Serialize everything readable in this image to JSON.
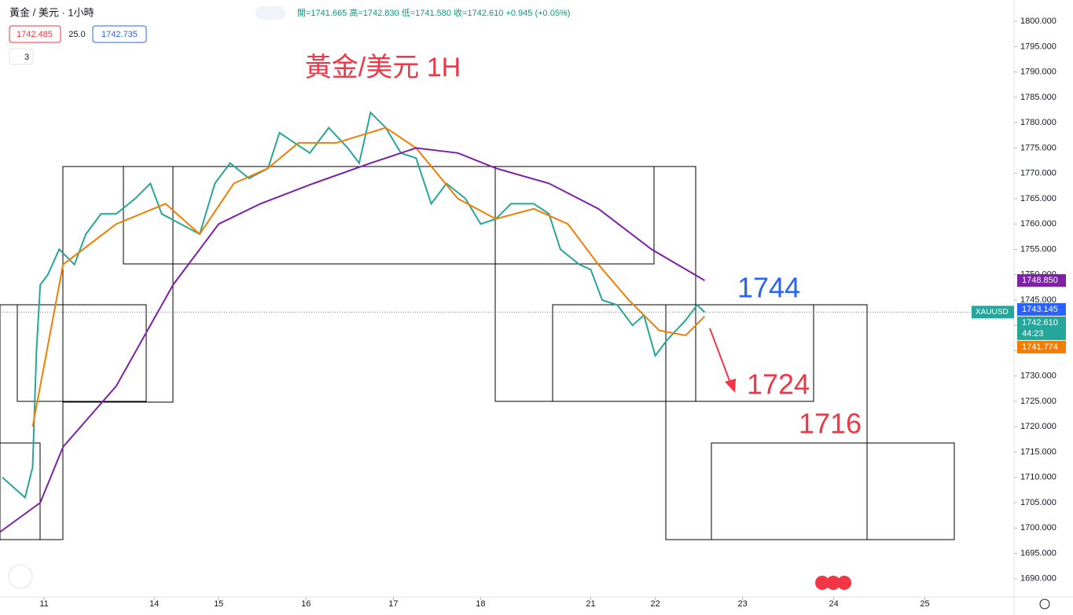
{
  "header": {
    "symbol": "黃金 / 美元 · 1小時",
    "ohlc": "開=1741.665 高=1742.830 低=1741.580 收=1742.610 +0.945 (+0.05%)",
    "bid": "1742.485",
    "spread": "25.0",
    "ask": "1742.735",
    "indicators": "3"
  },
  "chart_data": {
    "type": "line",
    "title": "黃金/美元 1H",
    "annotations": [
      {
        "text": "1744",
        "color": "#2962ff"
      },
      {
        "text": "1724",
        "color": "#f23645"
      },
      {
        "text": "1716",
        "color": "#f23645"
      }
    ],
    "series": [
      {
        "name": "XAUUSD",
        "color": "#26a69a",
        "x": [
          -11,
          -5,
          -3,
          -2,
          -1,
          1,
          4,
          8,
          11,
          15,
          19,
          24,
          28,
          31,
          36,
          41,
          45,
          49,
          54,
          59,
          62,
          66,
          70,
          75,
          80,
          83,
          86,
          90,
          94,
          98,
          102,
          106,
          111,
          115,
          119,
          123,
          129,
          133,
          136,
          141,
          144,
          147,
          151,
          155,
          158,
          161,
          164,
          169,
          172,
          174
        ],
        "values": [
          1710,
          1706,
          1712,
          1735,
          1748,
          1750,
          1755,
          1752,
          1758,
          1762,
          1762,
          1765,
          1768,
          1762,
          1760,
          1758,
          1768,
          1772,
          1769,
          1771,
          1778,
          1776,
          1774,
          1779,
          1775,
          1772,
          1782,
          1779,
          1774,
          1773,
          1764,
          1768,
          1765,
          1760,
          1761,
          1764,
          1764,
          1762,
          1755,
          1752,
          1751,
          1745,
          1744,
          1740,
          1742,
          1734,
          1737,
          1741,
          1744,
          1742.61
        ]
      },
      {
        "name": "EMA",
        "color": "#f57c00",
        "x": [
          -3,
          5,
          19,
          32,
          41,
          50,
          59,
          67,
          77,
          90,
          98,
          109,
          119,
          129,
          138,
          146,
          154,
          162,
          169,
          174
        ],
        "values": [
          1720,
          1752,
          1760,
          1764,
          1758,
          1768,
          1771,
          1776,
          1776,
          1779,
          1775,
          1765,
          1761,
          1763,
          1760,
          1752,
          1745,
          1739,
          1738,
          1741.774
        ]
      },
      {
        "name": "SMA",
        "color": "#7e1fa8",
        "x": [
          -12,
          -1,
          5,
          19,
          34,
          46,
          57,
          71,
          86,
          98,
          109,
          119,
          133,
          146,
          160,
          174
        ],
        "values": [
          1699,
          1705,
          1716,
          1728,
          1748,
          1760,
          1764,
          1768,
          1772,
          1775,
          1774,
          1771,
          1768,
          1763,
          1755,
          1748.85
        ]
      }
    ],
    "xlim": [
      -11.6,
      255.5
    ],
    "xticks": [
      {
        "value": 0,
        "label": "11"
      },
      {
        "value": 29,
        "label": "14"
      },
      {
        "value": 46,
        "label": "15"
      },
      {
        "value": 69,
        "label": "16"
      },
      {
        "value": 92,
        "label": "17"
      },
      {
        "value": 115,
        "label": "18"
      },
      {
        "value": 144,
        "label": "21"
      },
      {
        "value": 161,
        "label": "22"
      },
      {
        "value": 184,
        "label": "23"
      },
      {
        "value": 208,
        "label": "24"
      },
      {
        "value": 232,
        "label": "25"
      }
    ],
    "ylim": [
      1686.4,
      1804.2
    ],
    "yticks": [
      {
        "value": 1690,
        "label": "1690.000"
      },
      {
        "value": 1695,
        "label": "1695.000"
      },
      {
        "value": 1700,
        "label": "1700.000"
      },
      {
        "value": 1705,
        "label": "1705.000"
      },
      {
        "value": 1710,
        "label": "1710.000"
      },
      {
        "value": 1715,
        "label": "1715.000"
      },
      {
        "value": 1720,
        "label": "1720.000"
      },
      {
        "value": 1725,
        "label": "1725.000"
      },
      {
        "value": 1730,
        "label": "1730.000"
      },
      {
        "value": 1735,
        "label": "1735.000"
      },
      {
        "value": 1740,
        "label": "1740.000"
      },
      {
        "value": 1745,
        "label": "1745.000"
      },
      {
        "value": 1750,
        "label": "1750.000"
      },
      {
        "value": 1755,
        "label": "1755.000"
      },
      {
        "value": 1760,
        "label": "1760.000"
      },
      {
        "value": 1765,
        "label": "1765.000"
      },
      {
        "value": 1770,
        "label": "1770.000"
      },
      {
        "value": 1775,
        "label": "1775.000"
      },
      {
        "value": 1780,
        "label": "1780.000"
      },
      {
        "value": 1785,
        "label": "1785.000"
      },
      {
        "value": 1790,
        "label": "1790.000"
      },
      {
        "value": 1795,
        "label": "1795.000"
      },
      {
        "value": 1800,
        "label": "1800.000"
      }
    ],
    "price_labels": [
      {
        "value": 1748.85,
        "label": "1748.850",
        "color": "#7e1fa8"
      },
      {
        "value": 1743.145,
        "label": "1743.145",
        "color": "#2962ff"
      },
      {
        "value": 1742.61,
        "label": "1742.610",
        "color": "#26a69a",
        "countdown": "44:23"
      },
      {
        "value": 1741.774,
        "label": "1741.774",
        "color": "#f57c00"
      }
    ],
    "current_price_symbol": "XAUUSD"
  }
}
